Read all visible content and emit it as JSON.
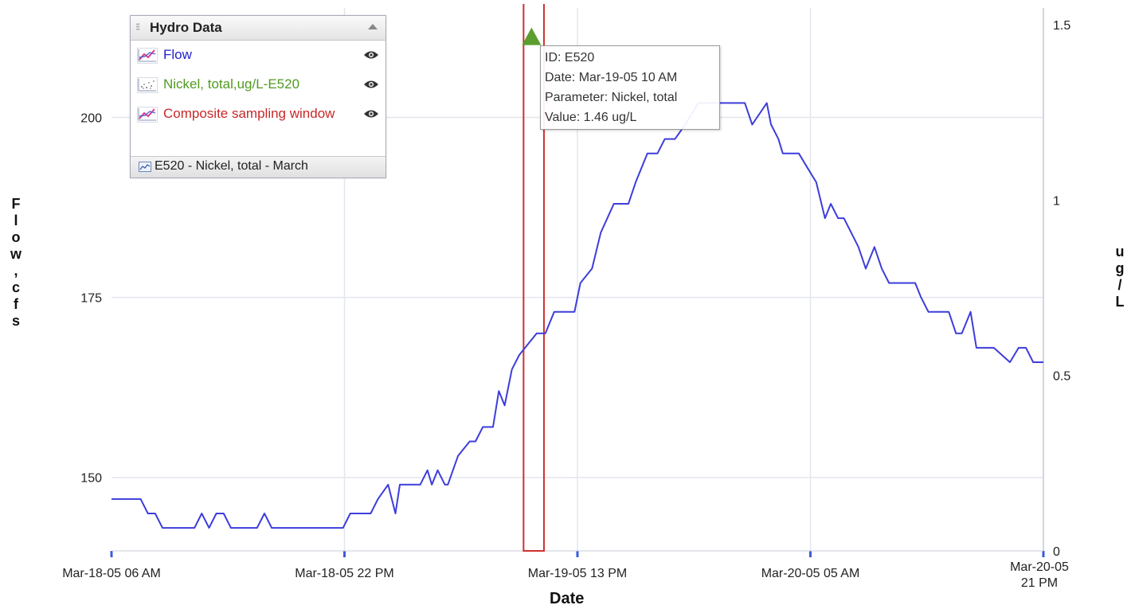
{
  "chart_data": {
    "type": "line",
    "xlabel": "Date",
    "ylabel_left": "Flow, cfs",
    "ylabel_right": "ug/L",
    "x_ticks": [
      "Mar-18-05 06 AM",
      "Mar-18-05 22 PM",
      "Mar-19-05 13 PM",
      "Mar-20-05 05 AM",
      "Mar-20-05 21 PM"
    ],
    "x_tick_lines": [
      [
        "Mar-18-05 06 AM"
      ],
      [
        "Mar-18-05 22 PM"
      ],
      [
        "Mar-19-05 13 PM"
      ],
      [
        "Mar-20-05 05 AM"
      ],
      [
        "Mar-20-05",
        "21 PM"
      ]
    ],
    "x_unit": "hours",
    "x_range": [
      0,
      64
    ],
    "y_left": {
      "ticks": [
        150,
        175,
        200
      ],
      "range": [
        139.8,
        215.2
      ]
    },
    "y_right": {
      "ticks": [
        0,
        0.5,
        1,
        1.5
      ],
      "tick_labels": [
        "0",
        "0.5",
        "1",
        "1.5"
      ],
      "range": [
        0,
        1.5
      ]
    },
    "grid": true,
    "series": [
      {
        "name": "Flow",
        "axis": "left",
        "color": "#3d3ddb",
        "x": [
          0,
          2.0,
          2.5,
          3.0,
          3.5,
          4.0,
          5.7,
          6.2,
          6.7,
          7.2,
          7.7,
          8.2,
          10.0,
          10.5,
          11.0,
          12.5,
          13.0,
          15.9,
          16.4,
          16.8,
          17.8,
          18.3,
          19.0,
          19.5,
          19.8,
          21.2,
          21.7,
          22.0,
          22.4,
          22.9,
          23.1,
          23.8,
          24.6,
          25.0,
          25.5,
          26.2,
          26.6,
          27.0,
          27.5,
          28.0,
          29.2,
          29.8,
          30.0,
          30.4,
          31.8,
          32.2,
          33.0,
          33.6,
          34.5,
          35.5,
          36.0,
          36.8,
          37.5,
          38.0,
          38.7,
          39.4,
          40.3,
          41.0,
          41.4,
          42.0,
          42.5,
          43.0,
          43.5,
          44.0,
          45.0,
          45.3,
          45.8,
          46.1,
          46.5,
          47.2,
          47.8,
          48.4,
          49.0,
          49.4,
          49.9,
          50.3,
          50.8,
          51.3,
          51.8,
          52.4,
          52.9,
          53.4,
          53.8,
          54.3,
          55.2,
          55.6,
          56.1,
          56.6,
          57.0,
          57.5,
          58.0,
          58.4,
          59.0,
          59.4,
          60.0,
          60.6,
          61.7,
          62.3,
          62.8,
          63.3,
          64.0
        ],
        "y": [
          147,
          147,
          145,
          145,
          143,
          143,
          143,
          145,
          143,
          145,
          145,
          143,
          143,
          145,
          143,
          143,
          143,
          143,
          145,
          145,
          145,
          147,
          149,
          145,
          149,
          149,
          151,
          149,
          151,
          149,
          149,
          153,
          155,
          155,
          157,
          157,
          162,
          160,
          165,
          167,
          170,
          170,
          171,
          173,
          173,
          177,
          179,
          184,
          188,
          188,
          191,
          195,
          195,
          197,
          197,
          199,
          202,
          202,
          202,
          202,
          202,
          202,
          202,
          199,
          202,
          199,
          197,
          195,
          195,
          195,
          193,
          191,
          186,
          188,
          186,
          186,
          184,
          182,
          179,
          182,
          179,
          177,
          177,
          177,
          177,
          175,
          173,
          173,
          173,
          173,
          170,
          170,
          173,
          168,
          168,
          168,
          166,
          168,
          168,
          166,
          166
        ]
      },
      {
        "name": "Nickel, total,ug/L-E520",
        "axis": "right",
        "color": "#5a9e2f",
        "x": [
          28.3
        ],
        "y": [
          1.46
        ]
      },
      {
        "name": "Composite sampling window",
        "axis": "right",
        "color": "#d03030",
        "window": {
          "x_start": 28.3,
          "x_end": 29.7,
          "y_min": 0,
          "y_max": 1.5
        }
      }
    ]
  },
  "legend": {
    "title": "Hydro Data",
    "items": [
      {
        "label": "Flow",
        "color": "#2222cc",
        "icon": "line-chart-icon"
      },
      {
        "label": "Nickel, total,ug/L-E520",
        "color": "#4f9a1f",
        "icon": "scatter-chart-icon"
      },
      {
        "label": "Composite sampling window",
        "color": "#c82828",
        "icon": "line-chart-icon"
      }
    ],
    "footer_label": "E520 - Nickel, total - March",
    "footer_icon": "area-chart-icon",
    "visibility_icon": "eye-icon"
  },
  "tooltip": {
    "lines": [
      "ID: E520",
      "Date: Mar-19-05 10 AM",
      "Parameter: Nickel, total",
      "Value: 1.46 ug/L"
    ]
  }
}
